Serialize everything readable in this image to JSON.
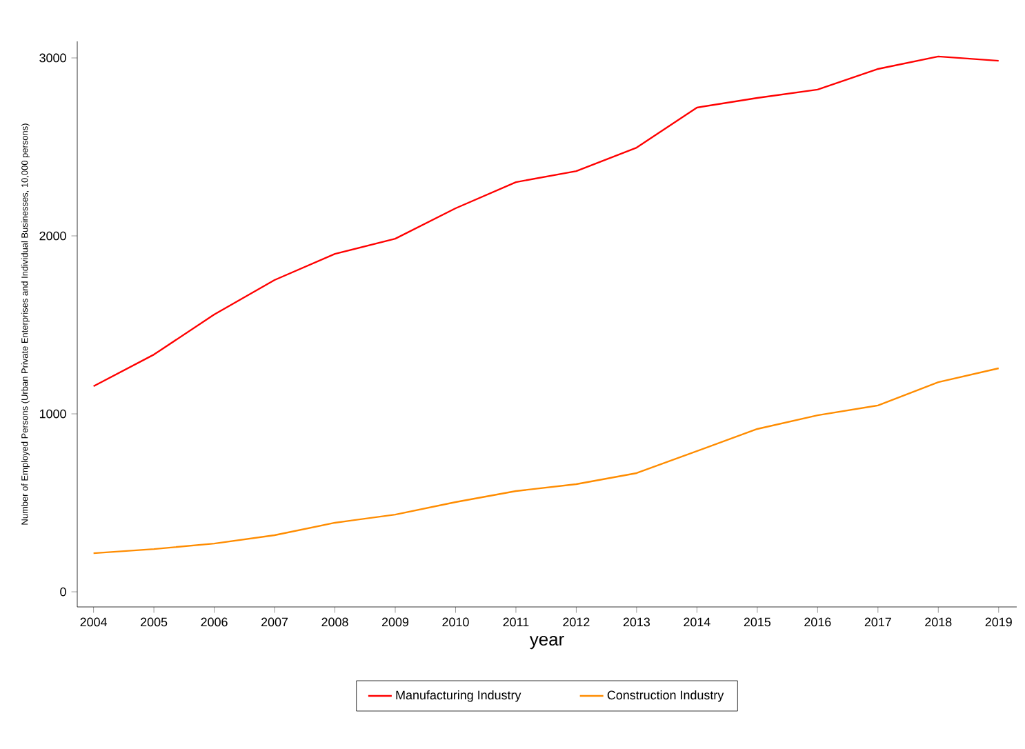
{
  "chart_data": {
    "type": "line",
    "xlabel": "year",
    "ylabel": "Number of Employed Persons (Urban Private Enterprises and Individual Businesses,  10,000 persons)",
    "x": [
      2004,
      2005,
      2006,
      2007,
      2008,
      2009,
      2010,
      2011,
      2012,
      2013,
      2014,
      2015,
      2016,
      2017,
      2018,
      2019
    ],
    "series": [
      {
        "name": "Manufacturing Industry",
        "color": "#ff0000",
        "values": [
          1155,
          1333,
          1558,
          1752,
          1899,
          1984,
          2155,
          2302,
          2364,
          2496,
          2721,
          2775,
          2822,
          2938,
          3008,
          2984
        ]
      },
      {
        "name": "Construction Industry",
        "color": "#ff8c00",
        "values": [
          217,
          240,
          271,
          318,
          388,
          434,
          504,
          566,
          605,
          667,
          791,
          915,
          992,
          1047,
          1178,
          1256
        ]
      }
    ],
    "xlim": [
      2003.73,
      2019.3
    ],
    "ylim": [
      -85,
      3093
    ],
    "xticks": [
      2004,
      2005,
      2006,
      2007,
      2008,
      2009,
      2010,
      2011,
      2012,
      2013,
      2014,
      2015,
      2016,
      2017,
      2018,
      2019
    ],
    "yticks": [
      0,
      1000,
      2000,
      3000
    ],
    "grid": false,
    "legend": "bottom",
    "marker": "none",
    "line_style": "solid"
  }
}
